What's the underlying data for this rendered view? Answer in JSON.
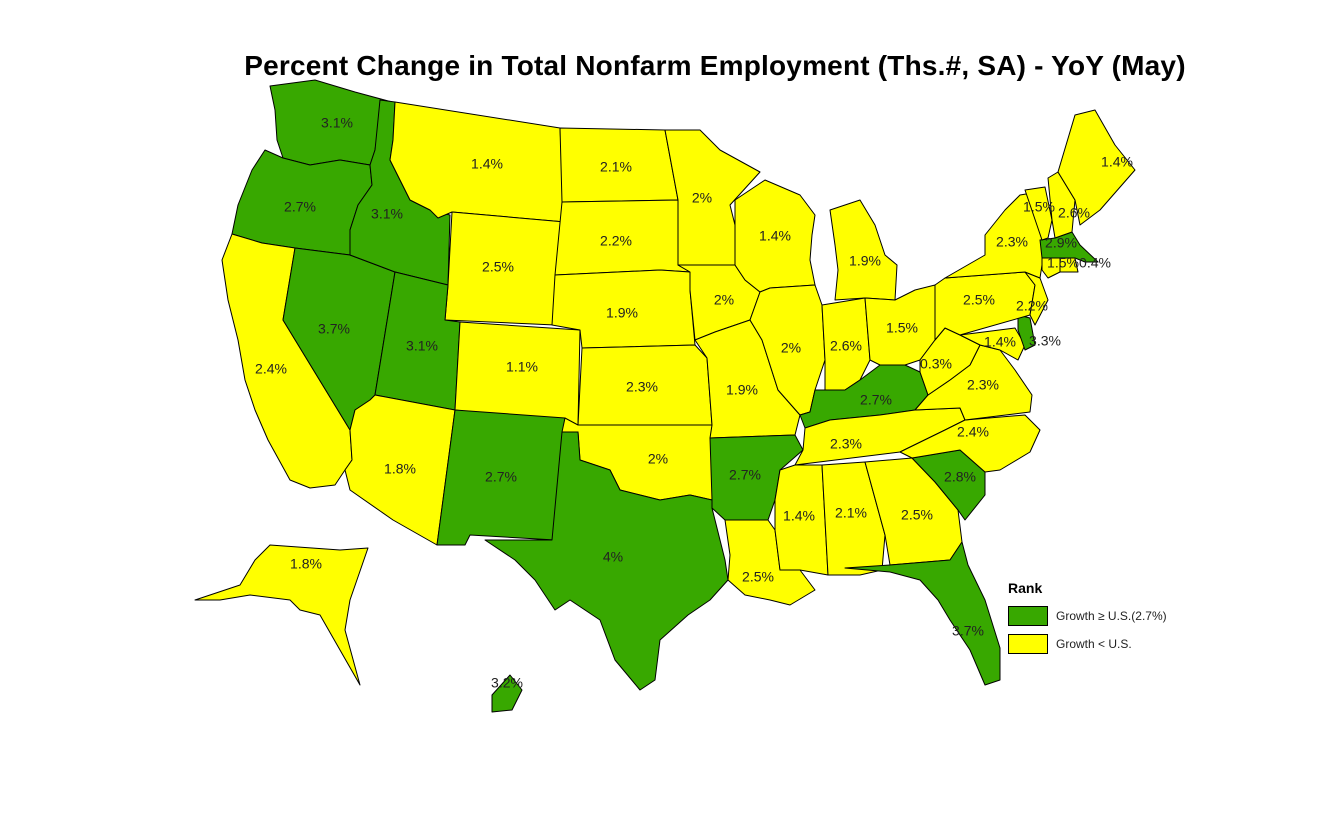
{
  "title": "Percent Change in Total Nonfarm Employment (Ths.#, SA) - YoY (May)",
  "colors": {
    "above": "#38a800",
    "below": "#ffff00"
  },
  "legend": {
    "title": "Rank",
    "items": [
      {
        "key": "above",
        "label": "Growth ≥ U.S.(2.7%)"
      },
      {
        "key": "below",
        "label": "Growth < U.S."
      }
    ]
  },
  "states": [
    {
      "code": "WA",
      "value": "3.1%",
      "class": "above"
    },
    {
      "code": "OR",
      "value": "2.7%",
      "class": "above"
    },
    {
      "code": "CA",
      "value": "2.4%",
      "class": "below"
    },
    {
      "code": "NV",
      "value": "3.7%",
      "class": "above"
    },
    {
      "code": "ID",
      "value": "3.1%",
      "class": "above"
    },
    {
      "code": "MT",
      "value": "1.4%",
      "class": "below"
    },
    {
      "code": "WY",
      "value": "2.5%",
      "class": "below"
    },
    {
      "code": "UT",
      "value": "3.1%",
      "class": "above"
    },
    {
      "code": "AZ",
      "value": "1.8%",
      "class": "below"
    },
    {
      "code": "CO",
      "value": "1.1%",
      "class": "below"
    },
    {
      "code": "NM",
      "value": "2.7%",
      "class": "above"
    },
    {
      "code": "ND",
      "value": "2.1%",
      "class": "below"
    },
    {
      "code": "SD",
      "value": "2.2%",
      "class": "below"
    },
    {
      "code": "NE",
      "value": "1.9%",
      "class": "below"
    },
    {
      "code": "KS",
      "value": "2.3%",
      "class": "below"
    },
    {
      "code": "OK",
      "value": "2%",
      "class": "below"
    },
    {
      "code": "TX",
      "value": "4%",
      "class": "above"
    },
    {
      "code": "MN",
      "value": "2%",
      "class": "below"
    },
    {
      "code": "IA",
      "value": "2%",
      "class": "below"
    },
    {
      "code": "MO",
      "value": "1.9%",
      "class": "below"
    },
    {
      "code": "AR",
      "value": "2.7%",
      "class": "above"
    },
    {
      "code": "LA",
      "value": "2.5%",
      "class": "below"
    },
    {
      "code": "WI",
      "value": "1.4%",
      "class": "below"
    },
    {
      "code": "IL",
      "value": "2%",
      "class": "below"
    },
    {
      "code": "MI",
      "value": "1.9%",
      "class": "below"
    },
    {
      "code": "IN",
      "value": "2.6%",
      "class": "below"
    },
    {
      "code": "OH",
      "value": "1.5%",
      "class": "below"
    },
    {
      "code": "KY",
      "value": "2.7%",
      "class": "above"
    },
    {
      "code": "TN",
      "value": "2.3%",
      "class": "below"
    },
    {
      "code": "MS",
      "value": "1.4%",
      "class": "below"
    },
    {
      "code": "AL",
      "value": "2.1%",
      "class": "below"
    },
    {
      "code": "GA",
      "value": "2.5%",
      "class": "below"
    },
    {
      "code": "FL",
      "value": "3.7%",
      "class": "above"
    },
    {
      "code": "SC",
      "value": "2.8%",
      "class": "above"
    },
    {
      "code": "NC",
      "value": "2.4%",
      "class": "below"
    },
    {
      "code": "VA",
      "value": "2.3%",
      "class": "below"
    },
    {
      "code": "WV",
      "value": "0.3%",
      "class": "below"
    },
    {
      "code": "MD",
      "value": "1.4%",
      "class": "below"
    },
    {
      "code": "DE",
      "value": "3.3%",
      "class": "above"
    },
    {
      "code": "PA",
      "value": "2.5%",
      "class": "below"
    },
    {
      "code": "NJ",
      "value": "2.2%",
      "class": "below"
    },
    {
      "code": "NY",
      "value": "2.3%",
      "class": "below"
    },
    {
      "code": "CT",
      "value": "1.5%",
      "class": "below"
    },
    {
      "code": "RI",
      "value": "0.4%",
      "class": "below"
    },
    {
      "code": "MA",
      "value": "2.9%",
      "class": "above"
    },
    {
      "code": "VT",
      "value": "1.5%",
      "class": "below"
    },
    {
      "code": "NH",
      "value": "2.6%",
      "class": "below"
    },
    {
      "code": "ME",
      "value": "1.4%",
      "class": "below"
    },
    {
      "code": "AK",
      "value": "1.8%",
      "class": "below"
    },
    {
      "code": "HI",
      "value": "3.2%",
      "class": "above"
    }
  ]
}
